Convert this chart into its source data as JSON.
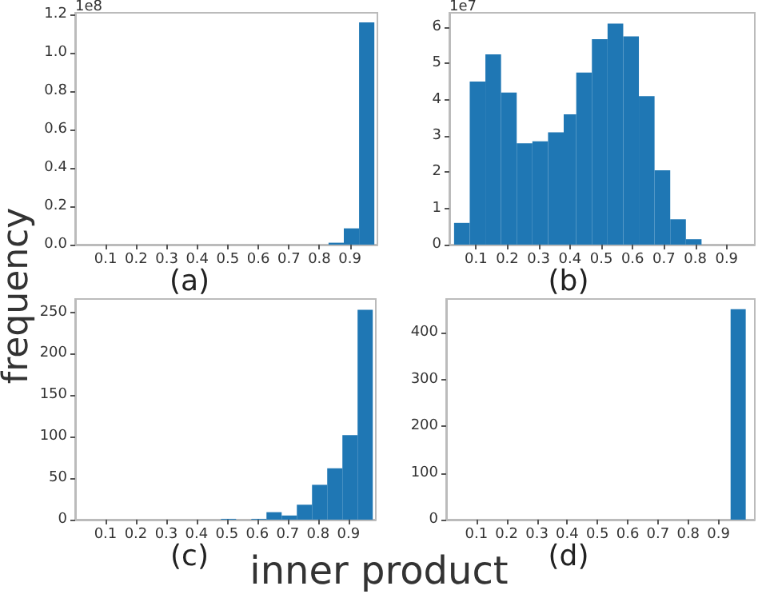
{
  "chart_data": [
    {
      "type": "histogram",
      "title": "(a)",
      "ylabel": "frequency",
      "annotations": [
        "1e8"
      ],
      "color": "#1f77b4",
      "bins": [
        0.83,
        0.88,
        0.93,
        0.98
      ],
      "values": [
        0.01,
        0.085,
        1.16
      ],
      "xlim": [
        0,
        0.99
      ],
      "ylim": [
        0,
        1.21
      ],
      "xticks": [
        0.1,
        0.2,
        0.3,
        0.4,
        0.5,
        0.6,
        0.7,
        0.8,
        0.9
      ],
      "yticks": [
        {
          "value": 0,
          "label": "0.0"
        },
        0.2,
        0.4,
        0.6,
        0.8,
        {
          "value": 1,
          "label": "1.0"
        },
        1.2
      ],
      "grid": false
    },
    {
      "type": "histogram",
      "title": "(b)",
      "annotations": [
        "1e7"
      ],
      "color": "#1f77b4",
      "bins": [
        0.03,
        0.08,
        0.13,
        0.18,
        0.23,
        0.28,
        0.33,
        0.38,
        0.42,
        0.47,
        0.52,
        0.57,
        0.62,
        0.67,
        0.72,
        0.77,
        0.82
      ],
      "values": [
        0.6,
        4.5,
        5.25,
        4.2,
        2.8,
        2.85,
        3.1,
        3.6,
        4.75,
        5.67,
        6.1,
        5.75,
        4.1,
        2.05,
        0.7,
        0.15
      ],
      "xlim": [
        0.015,
        0.99
      ],
      "ylim": [
        0,
        6.4
      ],
      "xticks": [
        0.1,
        0.2,
        0.3,
        0.4,
        0.5,
        0.6,
        0.7,
        0.8,
        0.9
      ],
      "yticks": [
        0,
        1,
        2,
        3,
        4,
        5,
        6
      ],
      "grid": false
    },
    {
      "type": "histogram",
      "title": "(c)",
      "xlabel": "inner product",
      "color": "#1f77b4",
      "bins": [
        0.48,
        0.53,
        0.58,
        0.63,
        0.68,
        0.73,
        0.78,
        0.83,
        0.88,
        0.93,
        0.98
      ],
      "values": [
        1,
        0,
        1,
        9,
        5,
        18,
        42,
        62,
        102,
        253
      ],
      "xlim": [
        0,
        0.99
      ],
      "ylim": [
        0,
        266
      ],
      "xticks": [
        0.1,
        0.2,
        0.3,
        0.4,
        0.5,
        0.6,
        0.7,
        0.8,
        0.9
      ],
      "yticks": [
        0,
        50,
        100,
        150,
        200,
        250
      ],
      "grid": false
    },
    {
      "type": "histogram",
      "title": "(d)",
      "color": "#1f77b4",
      "bins": [
        0.94,
        0.99
      ],
      "values": [
        450
      ],
      "xlim": [
        0,
        1.02
      ],
      "ylim": [
        0,
        472
      ],
      "xticks": [
        0.1,
        0.2,
        0.3,
        0.4,
        0.5,
        0.6,
        0.7,
        0.8,
        0.9
      ],
      "yticks": [
        0,
        100,
        200,
        300,
        400
      ],
      "grid": false
    }
  ]
}
